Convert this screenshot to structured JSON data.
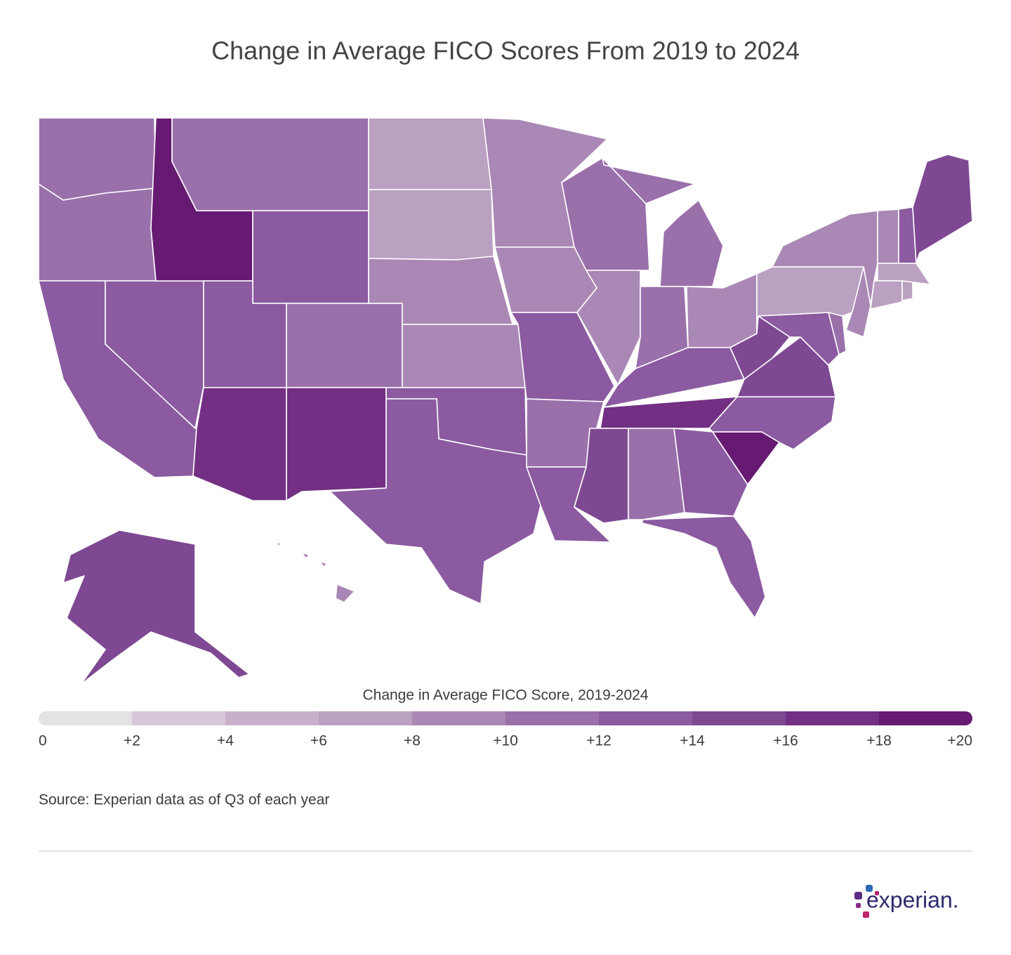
{
  "chart_data": {
    "type": "choropleth",
    "title": "Change in Average FICO Scores From 2019 to 2024",
    "legend_title": "Change in Average FICO Score, 2019-2024",
    "source": "Source: Experian data as of Q3 of each year",
    "brand": "experian.",
    "scale": {
      "ticks": [
        0,
        {
          "value": 2,
          "label": "+2"
        },
        {
          "value": 4,
          "label": "+4"
        },
        {
          "value": 6,
          "label": "+6"
        },
        {
          "value": 8,
          "label": "+8"
        },
        {
          "value": 10,
          "label": "+10"
        },
        {
          "value": 12,
          "label": "+12"
        },
        {
          "value": 14,
          "label": "+14"
        },
        {
          "value": 16,
          "label": "+16"
        },
        {
          "value": 18,
          "label": "+18"
        },
        {
          "value": 20,
          "label": "+20"
        }
      ],
      "colors": [
        "#e4e2e4",
        "#d6c7d9",
        "#c8b0cb",
        "#baa0c1",
        "#aa88b5",
        "#9a70ab",
        "#8b5aa0",
        "#7e4892",
        "#722f83",
        "#661a72"
      ]
    },
    "values": [
      11,
      11,
      13,
      13,
      19,
      11,
      13,
      13,
      11,
      17,
      17,
      7,
      7,
      9,
      9,
      13,
      13,
      9,
      9,
      13,
      11,
      13,
      11,
      9,
      11,
      11,
      9,
      13,
      17,
      15,
      11,
      13,
      13,
      19,
      13,
      15,
      15,
      13,
      11,
      7,
      9,
      9,
      9,
      13,
      15,
      7,
      7,
      7,
      15,
      9
    ]
  }
}
